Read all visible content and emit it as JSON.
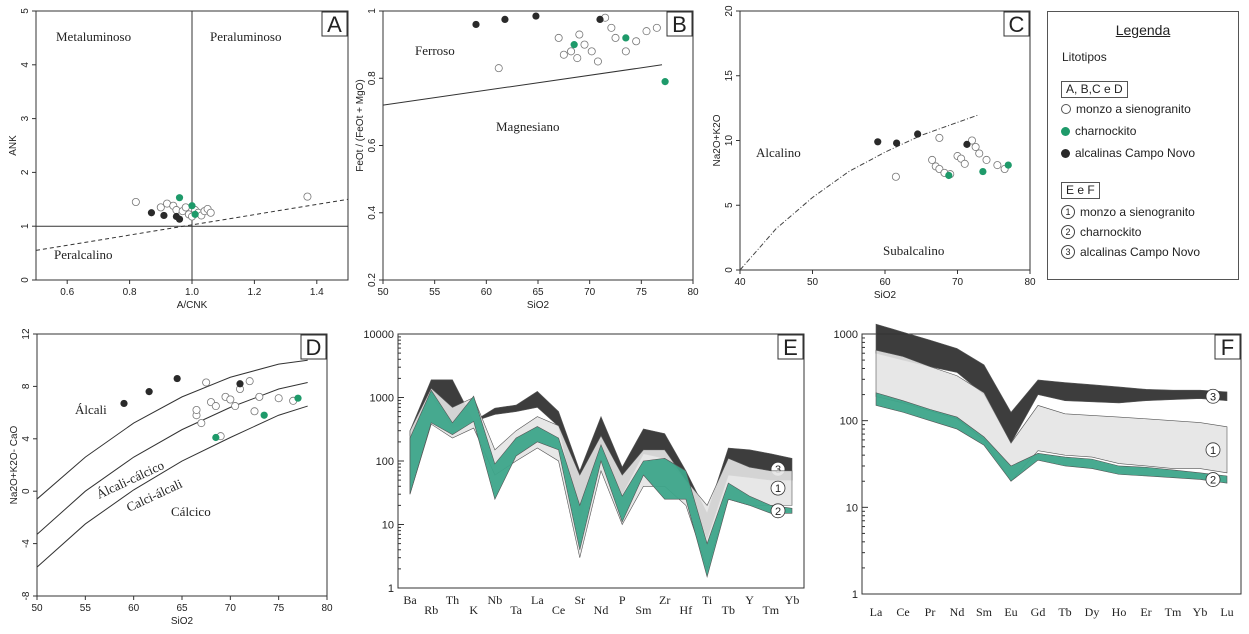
{
  "colors": {
    "monzo": "#ffffff",
    "charno": "#1e9a6a",
    "alc": "#2a2a2a",
    "fill2": "#3da58a",
    "fill1": "#e4e4e4",
    "fill3": "#333333"
  },
  "chart_data": [
    {
      "id": "A",
      "type": "scatter",
      "label": "A",
      "xlabel": "A/CNK",
      "ylabel": "ANK",
      "xlim": [
        0.5,
        1.5
      ],
      "ylim": [
        0,
        5
      ],
      "xticks": [
        "0.6",
        "0.8",
        "1.0",
        "1.2",
        "1.4"
      ],
      "xtick_values": [
        0.6,
        0.8,
        1.0,
        1.2,
        1.4
      ],
      "yticks": [
        "0",
        "1",
        "2",
        "3",
        "4",
        "5"
      ],
      "ytick_values": [
        0,
        1,
        2,
        3,
        4,
        5
      ],
      "regions": [
        "Metaluminoso",
        "Peraluminoso",
        "Peralcalino"
      ],
      "monzo": [
        [
          0.82,
          1.45
        ],
        [
          0.9,
          1.35
        ],
        [
          0.92,
          1.42
        ],
        [
          0.94,
          1.38
        ],
        [
          0.95,
          1.3
        ],
        [
          0.97,
          1.28
        ],
        [
          0.98,
          1.35
        ],
        [
          0.99,
          1.22
        ],
        [
          1.0,
          1.18
        ],
        [
          1.01,
          1.3
        ],
        [
          1.02,
          1.25
        ],
        [
          1.03,
          1.2
        ],
        [
          1.04,
          1.28
        ],
        [
          1.05,
          1.32
        ],
        [
          1.06,
          1.25
        ],
        [
          1.37,
          1.55
        ]
      ],
      "charno": [
        [
          0.96,
          1.53
        ],
        [
          1.0,
          1.38
        ],
        [
          1.01,
          1.22
        ]
      ],
      "alc": [
        [
          0.87,
          1.25
        ],
        [
          0.91,
          1.2
        ],
        [
          0.95,
          1.18
        ],
        [
          0.96,
          1.13
        ]
      ]
    },
    {
      "id": "B",
      "type": "scatter",
      "label": "B",
      "xlabel": "SiO2",
      "ylabel": "FeOt / (FeOt + MgO)",
      "xlim": [
        50,
        80
      ],
      "ylim": [
        0.2,
        1.0
      ],
      "xticks": [
        "50",
        "55",
        "60",
        "65",
        "70",
        "75",
        "80"
      ],
      "xtick_values": [
        50,
        55,
        60,
        65,
        70,
        75,
        80
      ],
      "yticks": [
        "0.2",
        "0.4",
        "0.6",
        "0.8",
        "1"
      ],
      "ytick_values": [
        0.2,
        0.4,
        0.6,
        0.8,
        1.0
      ],
      "regions": [
        "Ferroso",
        "Magnesiano"
      ],
      "monzo": [
        [
          61.2,
          0.83
        ],
        [
          67,
          0.92
        ],
        [
          67.5,
          0.87
        ],
        [
          68.2,
          0.88
        ],
        [
          68.8,
          0.86
        ],
        [
          69.5,
          0.9
        ],
        [
          70.2,
          0.88
        ],
        [
          70.8,
          0.85
        ],
        [
          71.5,
          0.98
        ],
        [
          72.1,
          0.95
        ],
        [
          72.5,
          0.92
        ],
        [
          73.5,
          0.88
        ],
        [
          74.5,
          0.91
        ],
        [
          75.5,
          0.94
        ],
        [
          76.5,
          0.95
        ],
        [
          69,
          0.93
        ]
      ],
      "charno": [
        [
          68.5,
          0.9
        ],
        [
          73.5,
          0.92
        ],
        [
          77.3,
          0.79
        ]
      ],
      "alc": [
        [
          59,
          0.96
        ],
        [
          61.8,
          0.975
        ],
        [
          64.8,
          0.985
        ],
        [
          71,
          0.975
        ]
      ]
    },
    {
      "id": "C",
      "type": "scatter",
      "label": "C",
      "xlabel": "SiO2",
      "ylabel": "Na2O+K2O",
      "xlim": [
        40,
        80
      ],
      "ylim": [
        0,
        20
      ],
      "xticks": [
        "40",
        "50",
        "60",
        "70",
        "80"
      ],
      "xtick_values": [
        40,
        50,
        60,
        70,
        80
      ],
      "yticks": [
        "0",
        "5",
        "10",
        "15",
        "20"
      ],
      "ytick_values": [
        0,
        5,
        10,
        15,
        20
      ],
      "regions": [
        "Alcalino",
        "Subalcalino"
      ],
      "monzo": [
        [
          61.5,
          7.2
        ],
        [
          66.5,
          8.5
        ],
        [
          67,
          8
        ],
        [
          67.5,
          7.8
        ],
        [
          68.2,
          7.5
        ],
        [
          69,
          7.4
        ],
        [
          70,
          8.8
        ],
        [
          70.5,
          8.6
        ],
        [
          71,
          8.2
        ],
        [
          72,
          10
        ],
        [
          72.5,
          9.5
        ],
        [
          73,
          9
        ],
        [
          74,
          8.5
        ],
        [
          75.5,
          8.1
        ],
        [
          76.5,
          7.8
        ],
        [
          67.5,
          10.2
        ]
      ],
      "charno": [
        [
          68.8,
          7.3
        ],
        [
          73.5,
          7.6
        ],
        [
          77,
          8.1
        ]
      ],
      "alc": [
        [
          59,
          9.9
        ],
        [
          61.6,
          9.8
        ],
        [
          64.5,
          10.5
        ],
        [
          71.3,
          9.7
        ]
      ]
    },
    {
      "id": "D",
      "type": "scatter",
      "label": "D",
      "xlabel": "SiO2",
      "ylabel": "Na2O+K2O- CaO",
      "xlim": [
        50,
        80
      ],
      "ylim": [
        -8,
        12
      ],
      "xticks": [
        "50",
        "55",
        "60",
        "65",
        "70",
        "75",
        "80"
      ],
      "xtick_values": [
        50,
        55,
        60,
        65,
        70,
        75,
        80
      ],
      "yticks": [
        "-8",
        "-4",
        "0",
        "4",
        "8",
        "12"
      ],
      "ytick_values": [
        -8,
        -4,
        0,
        4,
        8,
        12
      ],
      "regions": [
        "Álcali",
        "Álcali-cálcico",
        "Calci-álcali",
        "Cálcico"
      ],
      "monzo": [
        [
          66.5,
          5.8
        ],
        [
          67,
          5.2
        ],
        [
          67.5,
          8.3
        ],
        [
          68,
          6.8
        ],
        [
          68.5,
          6.5
        ],
        [
          69,
          4.2
        ],
        [
          69.5,
          7.2
        ],
        [
          70,
          7
        ],
        [
          70.5,
          6.5
        ],
        [
          71,
          7.8
        ],
        [
          72,
          8.4
        ],
        [
          72.5,
          6.1
        ],
        [
          73,
          7.2
        ],
        [
          75,
          7.1
        ],
        [
          76.5,
          6.9
        ],
        [
          66.5,
          6.2
        ]
      ],
      "charno": [
        [
          68.5,
          4.1
        ],
        [
          73.5,
          5.8
        ],
        [
          77,
          7.1
        ]
      ],
      "alc": [
        [
          59,
          6.7
        ],
        [
          61.6,
          7.6
        ],
        [
          64.5,
          8.6
        ],
        [
          71,
          8.2
        ]
      ]
    },
    {
      "id": "E",
      "type": "area",
      "label": "E",
      "log": true,
      "ylim": [
        1,
        10000
      ],
      "yticks": [
        "1",
        "10",
        "100",
        "1000",
        "10000"
      ],
      "ytick_values": [
        1,
        10,
        100,
        1000,
        10000
      ],
      "categories": [
        "Ba",
        "Rb",
        "Th",
        "K",
        "Nb",
        "Ta",
        "La",
        "Ce",
        "Sr",
        "Nd",
        "P",
        "Sm",
        "Zr",
        "Hf",
        "Ti",
        "Tb",
        "Y",
        "Tm",
        "Yb"
      ],
      "series": [
        {
          "marker": "3",
          "lower": [
            250,
            1050,
            330,
            420,
            540,
            600,
            700,
            350,
            12,
            150,
            30,
            130,
            110,
            50,
            6,
            60,
            55,
            50,
            50
          ],
          "upper": [
            300,
            1900,
            1900,
            420,
            680,
            760,
            1250,
            600,
            70,
            500,
            80,
            320,
            270,
            70,
            15,
            160,
            150,
            130,
            110
          ]
        },
        {
          "marker": "1",
          "lower": [
            30,
            380,
            230,
            330,
            60,
            100,
            160,
            100,
            3,
            70,
            10,
            40,
            40,
            20,
            2,
            25,
            20,
            20,
            20
          ],
          "upper": [
            300,
            1400,
            700,
            1000,
            150,
            300,
            500,
            360,
            60,
            250,
            60,
            150,
            150,
            50,
            20,
            110,
            80,
            70,
            70
          ]
        },
        {
          "marker": "2",
          "lower": [
            30,
            400,
            260,
            420,
            25,
            120,
            200,
            150,
            4,
            100,
            11,
            60,
            25,
            25,
            1.5,
            25,
            20,
            15,
            15
          ],
          "upper": [
            230,
            1300,
            400,
            1050,
            90,
            230,
            350,
            230,
            20,
            180,
            28,
            100,
            110,
            70,
            5,
            45,
            28,
            20,
            18
          ]
        }
      ]
    },
    {
      "id": "F",
      "type": "area",
      "label": "F",
      "log": true,
      "ylim": [
        1,
        1000
      ],
      "yticks": [
        "1",
        "10",
        "100",
        "1000"
      ],
      "ytick_values": [
        1,
        10,
        100,
        1000
      ],
      "categories": [
        "La",
        "Ce",
        "Pr",
        "Nd",
        "Sm",
        "Eu",
        "Gd",
        "Tb",
        "Dy",
        "Ho",
        "Er",
        "Tm",
        "Yb",
        "Lu"
      ],
      "series": [
        {
          "marker": "3",
          "lower": [
            600,
            500,
            420,
            360,
            200,
            55,
            200,
            170,
            165,
            160,
            170,
            175,
            180,
            170
          ],
          "upper": [
            1300,
            1050,
            850,
            680,
            440,
            125,
            295,
            275,
            260,
            245,
            230,
            225,
            225,
            215
          ]
        },
        {
          "marker": "1",
          "lower": [
            190,
            160,
            130,
            105,
            60,
            20,
            45,
            40,
            38,
            32,
            30,
            28,
            28,
            25
          ],
          "upper": [
            650,
            550,
            420,
            330,
            210,
            55,
            150,
            120,
            115,
            110,
            105,
            100,
            95,
            85
          ]
        },
        {
          "marker": "2",
          "lower": [
            150,
            125,
            100,
            80,
            52,
            20,
            35,
            30,
            28,
            24,
            23,
            22,
            21,
            19
          ],
          "upper": [
            210,
            170,
            135,
            110,
            65,
            30,
            42,
            38,
            36,
            30,
            29,
            27,
            25,
            23
          ]
        }
      ]
    }
  ],
  "legend": {
    "title": "Legenda",
    "subtitle": "Litotipos",
    "group1_title": "A, B,C e D",
    "group1_items": [
      "monzo a sienogranito",
      "charnockito",
      "alcalinas Campo Novo"
    ],
    "group2_title": "E e F",
    "group2_items": [
      {
        "marker": "1",
        "label": "monzo a sienogranito"
      },
      {
        "marker": "2",
        "label": "charnockito"
      },
      {
        "marker": "3",
        "label": "alcalinas Campo Novo"
      }
    ]
  }
}
